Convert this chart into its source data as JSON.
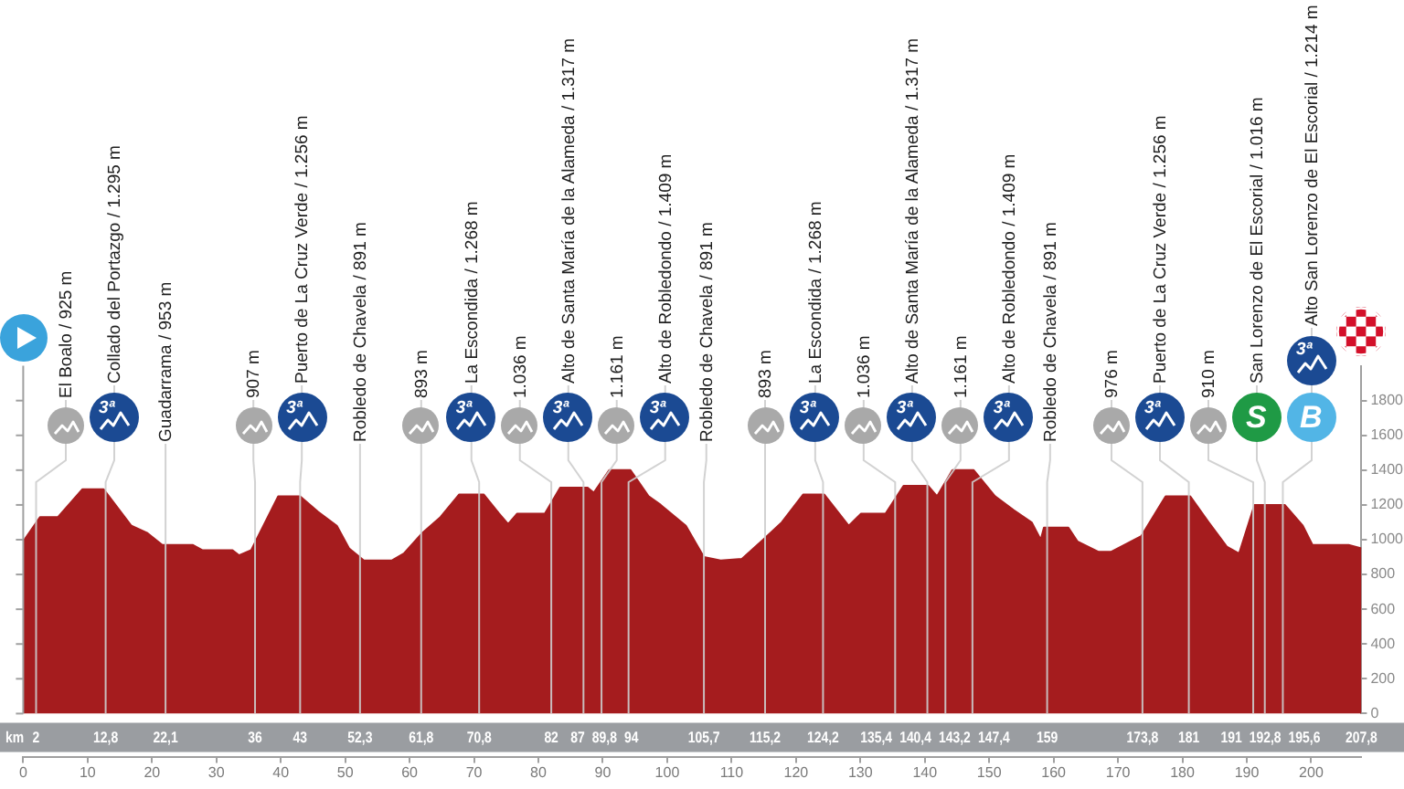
{
  "chart_data": {
    "type": "area",
    "color": "#a51c1e",
    "x": [
      0,
      2.6,
      5.4,
      9.2,
      12.5,
      16.8,
      19.2,
      21.6,
      26.3,
      27.8,
      32.5,
      33.5,
      35.4,
      39.6,
      43,
      45.8,
      48.7,
      50.6,
      52.9,
      57.2,
      59.1,
      62,
      64.8,
      67.7,
      71.5,
      73.9,
      75.3,
      76.7,
      81,
      83.4,
      87.6,
      88.6,
      91,
      94.3,
      97.1,
      99,
      102.9,
      105.7,
      108.3,
      111.6,
      114.9,
      117.8,
      121.1,
      124.4,
      128.2,
      130.1,
      133.9,
      136.7,
      140.5,
      141.9,
      144.3,
      147.6,
      150.9,
      153.8,
      156.6,
      158,
      158.5,
      162.3,
      163.7,
      167,
      168.9,
      173.6,
      177.4,
      181.2,
      184.1,
      186.9,
      188.8,
      191.2,
      195.9,
      198.7,
      200.2,
      205.8,
      207.8
    ],
    "values": [
      990,
      1130,
      1130,
      1290,
      1290,
      1080,
      1040,
      970,
      970,
      940,
      940,
      910,
      940,
      1250,
      1250,
      1160,
      1080,
      950,
      880,
      880,
      920,
      1040,
      1130,
      1260,
      1260,
      1150,
      1090,
      1150,
      1150,
      1300,
      1300,
      1270,
      1400,
      1400,
      1250,
      1200,
      1080,
      900,
      880,
      890,
      1000,
      1100,
      1260,
      1260,
      1080,
      1150,
      1150,
      1310,
      1310,
      1250,
      1400,
      1400,
      1250,
      1170,
      1100,
      1000,
      1070,
      1070,
      990,
      930,
      930,
      1020,
      1250,
      1250,
      1100,
      960,
      920,
      1200,
      1200,
      1080,
      970,
      970,
      950
    ],
    "xlim": [
      0,
      207.8
    ],
    "xticks": [
      0,
      10,
      20,
      30,
      40,
      50,
      60,
      70,
      80,
      90,
      100,
      110,
      120,
      130,
      140,
      150,
      160,
      170,
      180,
      190,
      200
    ],
    "ylim": [
      0,
      2000
    ],
    "yticks": [
      0,
      200,
      400,
      600,
      800,
      1000,
      1200,
      1400,
      1600,
      1800
    ],
    "ref_lines": [
      {
        "axis": "x",
        "value": 2,
        "label": "El Boalo / 925 m"
      },
      {
        "axis": "x",
        "value": 12.8,
        "label": "Collado del Portazgo / 1.295 m"
      },
      {
        "axis": "x",
        "value": 22.1,
        "label": "Guadarrama / 953 m"
      },
      {
        "axis": "x",
        "value": 36,
        "label": "907 m"
      },
      {
        "axis": "x",
        "value": 43,
        "label": "Puerto de La Cruz Verde / 1.256 m"
      },
      {
        "axis": "x",
        "value": 52.3,
        "label": "Robledo de Chavela / 891 m"
      },
      {
        "axis": "x",
        "value": 61.8,
        "label": "893 m"
      },
      {
        "axis": "x",
        "value": 70.8,
        "label": "La Escondida / 1.268 m"
      },
      {
        "axis": "x",
        "value": 82,
        "label": "1.036 m"
      },
      {
        "axis": "x",
        "value": 87,
        "label": "Alto de Santa María de la Alameda / 1.317 m"
      },
      {
        "axis": "x",
        "value": 89.8,
        "label": "1.161 m"
      },
      {
        "axis": "x",
        "value": 94,
        "label": "Alto de Robledondo / 1.409 m"
      },
      {
        "axis": "x",
        "value": 105.7,
        "label": "Robledo de Chavela / 891 m"
      },
      {
        "axis": "x",
        "value": 115.2,
        "label": "893 m"
      },
      {
        "axis": "x",
        "value": 124.2,
        "label": "La Escondida / 1.268 m"
      },
      {
        "axis": "x",
        "value": 135.4,
        "label": "1.036 m"
      },
      {
        "axis": "x",
        "value": 140.4,
        "label": "Alto de Santa María de la Alameda / 1.317 m"
      },
      {
        "axis": "x",
        "value": 143.2,
        "label": "1.161 m"
      },
      {
        "axis": "x",
        "value": 147.4,
        "label": "Alto de Robledondo / 1.409 m"
      },
      {
        "axis": "x",
        "value": 159,
        "label": "Robledo de Chavela / 891 m"
      },
      {
        "axis": "x",
        "value": 173.8,
        "label": "976 m"
      },
      {
        "axis": "x",
        "value": 181,
        "label": "Puerto de La Cruz Verde / 1.256 m"
      },
      {
        "axis": "x",
        "value": 191,
        "label": "910 m"
      },
      {
        "axis": "x",
        "value": 192.8,
        "label": "San Lorenzo de El Escorial / 1.016 m"
      },
      {
        "axis": "x",
        "value": 195.6,
        "label": "Alto San Lorenzo de El Escorial / 1.214 m"
      }
    ],
    "annotations": [
      "km",
      "2",
      "12,8",
      "22,1",
      "36",
      "43",
      "52,3",
      "61,8",
      "70,8",
      "82",
      "87",
      "89,8",
      "94",
      "105,7",
      "115,2",
      "124,2",
      "135,4",
      "140,4",
      "143,2",
      "147,4",
      "159",
      "173,8",
      "181",
      "191",
      "192,8",
      "195,6",
      "207,8",
      "3ª",
      "3ª",
      "3ª",
      "3ª",
      "3ª",
      "3ª",
      "3ª",
      "3ª",
      "3ª",
      "S",
      "B",
      "3ª"
    ]
  }
}
